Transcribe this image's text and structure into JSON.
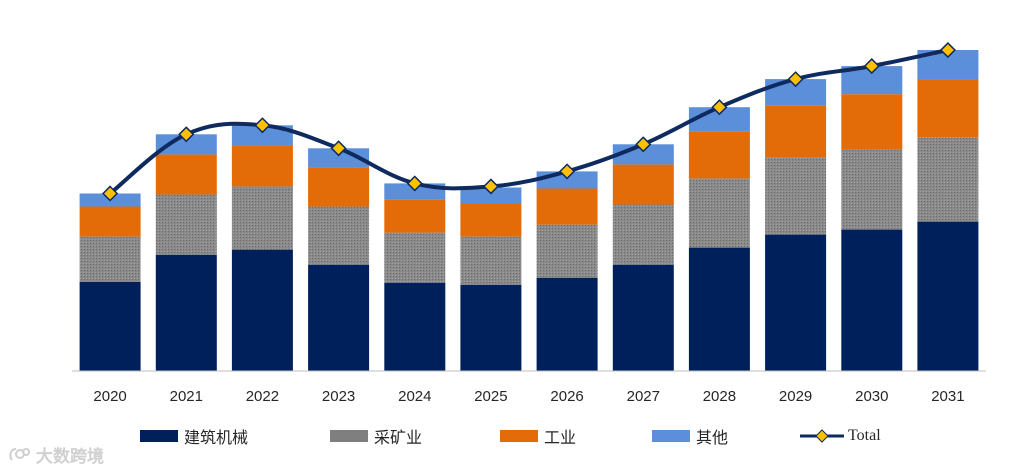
{
  "chart_data": {
    "type": "bar",
    "stacked": true,
    "categories": [
      "2020",
      "2021",
      "2022",
      "2023",
      "2024",
      "2025",
      "2026",
      "2027",
      "2028",
      "2029",
      "2030",
      "2031"
    ],
    "series": [
      {
        "name": "建筑机械",
        "color": "#00205B",
        "values": [
          89,
          116,
          121,
          106,
          88,
          86,
          93,
          106,
          123,
          136,
          141,
          149
        ]
      },
      {
        "name": "采矿业",
        "color": "#7F7F7F",
        "values": [
          45,
          60,
          63,
          58,
          50,
          48,
          53,
          60,
          69,
          77,
          80,
          84
        ]
      },
      {
        "name": "工业",
        "color": "#E36C09",
        "values": [
          30,
          40,
          41,
          39,
          33,
          33,
          36,
          40,
          47,
          52,
          55,
          58
        ]
      },
      {
        "name": "其他",
        "color": "#5B8FD9",
        "values": [
          13,
          20,
          20,
          19,
          16,
          16,
          17,
          20,
          24,
          26,
          28,
          29
        ]
      }
    ],
    "line": {
      "name": "Total",
      "color": "#0E2A5E",
      "marker_color": "#FFC000",
      "values": [
        177,
        236,
        245,
        222,
        187,
        184,
        199,
        226,
        263,
        291,
        304,
        320
      ]
    },
    "ylim": [
      0,
      335
    ],
    "title": "",
    "xlabel": "",
    "ylabel": "",
    "legend_position": "bottom"
  },
  "legend": [
    {
      "label": "建筑机械",
      "color": "#00205B",
      "kind": "bar"
    },
    {
      "label": "采矿业",
      "color": "#7F7F7F",
      "kind": "bar"
    },
    {
      "label": "工业",
      "color": "#E36C09",
      "kind": "bar"
    },
    {
      "label": "其他",
      "color": "#5B8FD9",
      "kind": "bar"
    },
    {
      "label": "Total",
      "color": "#0E2A5E",
      "kind": "line"
    }
  ],
  "watermark": {
    "text": "大数跨境"
  }
}
